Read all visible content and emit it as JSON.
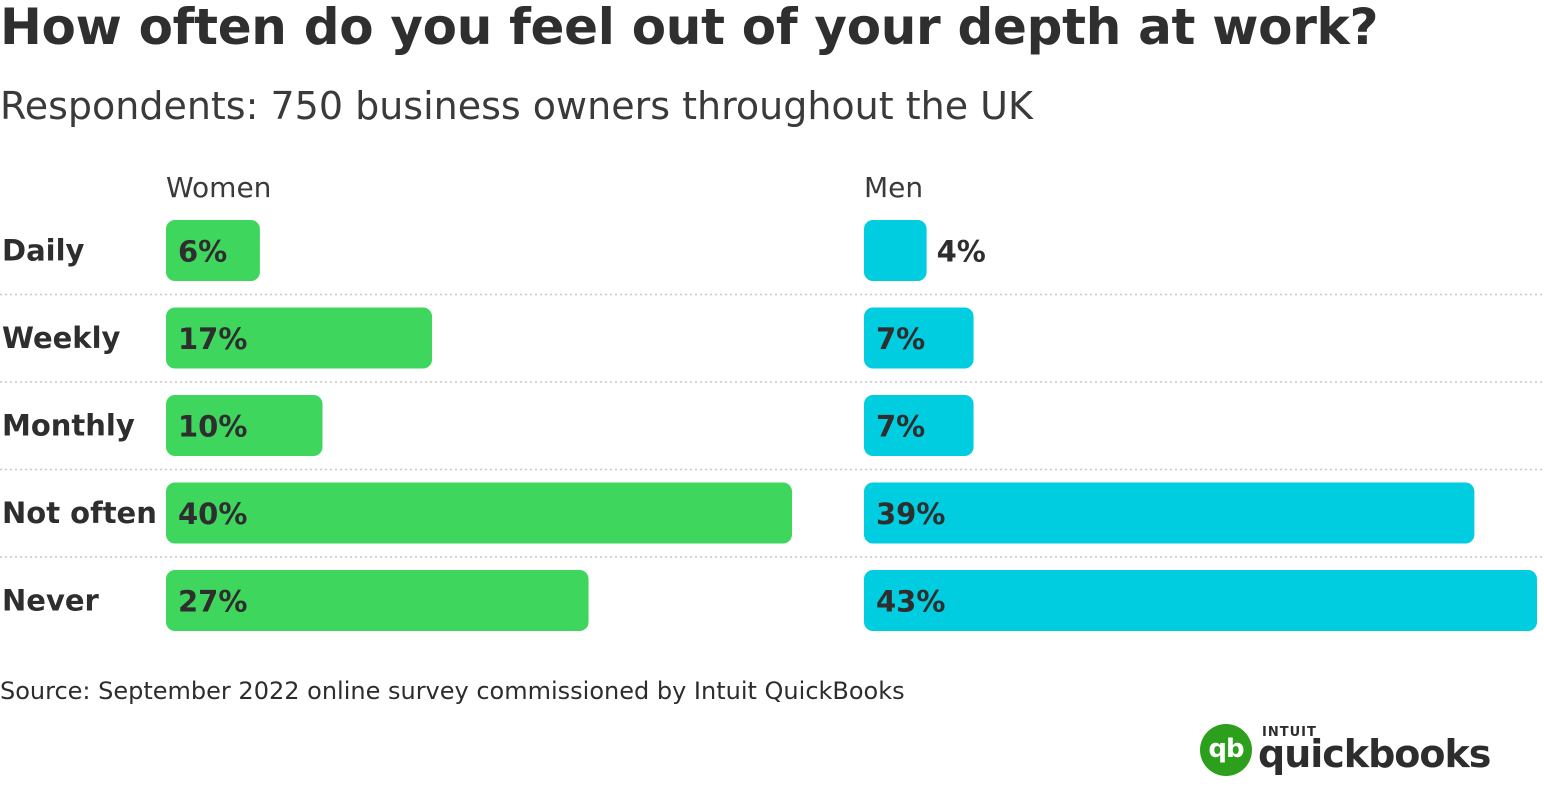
{
  "title": "How often do you feel out of your depth at work?",
  "subtitle": "Respondents: 750 business owners throughout the UK",
  "source": "Source: September 2022 online survey commissioned by Intuit QuickBooks",
  "logo": {
    "mark": "qb",
    "brand_small": "INTUIT",
    "brand_word": "quickbooks"
  },
  "colors": {
    "women": "#3fd65e",
    "men": "#00cde0",
    "logo_green": "#2ca01c"
  },
  "chart_data": {
    "type": "bar",
    "orientation": "horizontal",
    "categories": [
      "Daily",
      "Weekly",
      "Monthly",
      "Not often",
      "Never"
    ],
    "series": [
      {
        "name": "Women",
        "values": [
          6,
          17,
          10,
          40,
          27
        ],
        "labels": [
          "6%",
          "17%",
          "10%",
          "40%",
          "27%"
        ]
      },
      {
        "name": "Men",
        "values": [
          4,
          7,
          7,
          39,
          43
        ],
        "labels": [
          "4%",
          "7%",
          "7%",
          "39%",
          "43%"
        ]
      }
    ],
    "unit": "%",
    "grid": false,
    "legend": "column headers above each panel"
  }
}
